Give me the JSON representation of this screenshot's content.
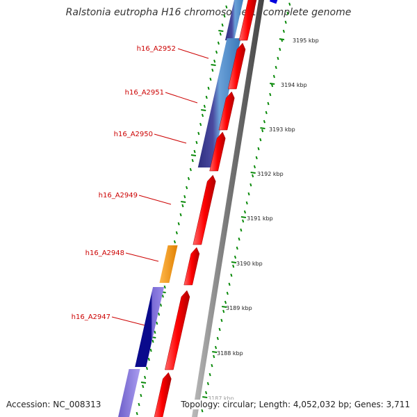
{
  "title": "Ralstonia eutropha H16 chromosome 1, complete genome",
  "footer": {
    "accession": "Accession: NC_008313",
    "topology": "Topology: circular; Length: 4,052,032 bp; Genes: 3,711"
  },
  "colors": {
    "forward_cds": "#ff0000",
    "reverse_cds_light": "#4f88c0",
    "reverse_cds_dark": "#42428f",
    "orange_feature": "#ff9900",
    "navy_feature": "#0a0a8c",
    "lavender_feature": "#7a6bd6",
    "tick_green": "#0a8a0a",
    "label_red": "#cc0000",
    "backbone_gray": "#888888",
    "blue_marker": "#0000dd"
  },
  "scale": {
    "unit": "kbp",
    "labels": [
      "3195 kbp",
      "3194 kbp",
      "3193 kbp",
      "3192 kbp",
      "3191 kbp",
      "3190 kbp",
      "3189 kbp",
      "3188 kbp",
      "3187 kbp"
    ]
  },
  "gene_labels": [
    "h16_A2952",
    "h16_A2951",
    "h16_A2950",
    "h16_A2949",
    "h16_A2948",
    "h16_A2947"
  ]
}
